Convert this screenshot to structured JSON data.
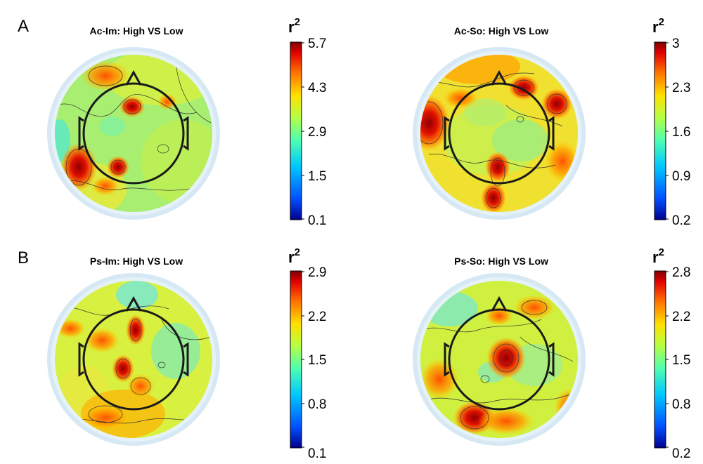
{
  "rows": [
    {
      "label": "A"
    },
    {
      "label": "B"
    }
  ],
  "panels": [
    {
      "title": "Ac-Im: High VS Low",
      "colorbar": {
        "title": "r",
        "superscript": "2",
        "ticks": [
          "5.7",
          "4.3",
          "2.9",
          "1.5",
          "0.1"
        ]
      }
    },
    {
      "title": "Ac-So: High VS Low",
      "colorbar": {
        "title": "r",
        "superscript": "2",
        "ticks": [
          "3",
          "2.3",
          "1.6",
          "0.9",
          "0.2"
        ]
      }
    },
    {
      "title": "Ps-Im: High VS Low",
      "colorbar": {
        "title": "r",
        "superscript": "2",
        "ticks": [
          "2.9",
          "2.2",
          "1.5",
          "0.8",
          "0.1"
        ]
      }
    },
    {
      "title": "Ps-So: High VS Low",
      "colorbar": {
        "title": "r",
        "superscript": "2",
        "ticks": [
          "2.8",
          "2.2",
          "1.5",
          "0.8",
          "0.2"
        ]
      }
    }
  ],
  "colormap": [
    "#00008f",
    "#0050ff",
    "#00c8ff",
    "#50ffb0",
    "#b8ff40",
    "#ffe000",
    "#ff7000",
    "#e00000",
    "#800000"
  ]
}
